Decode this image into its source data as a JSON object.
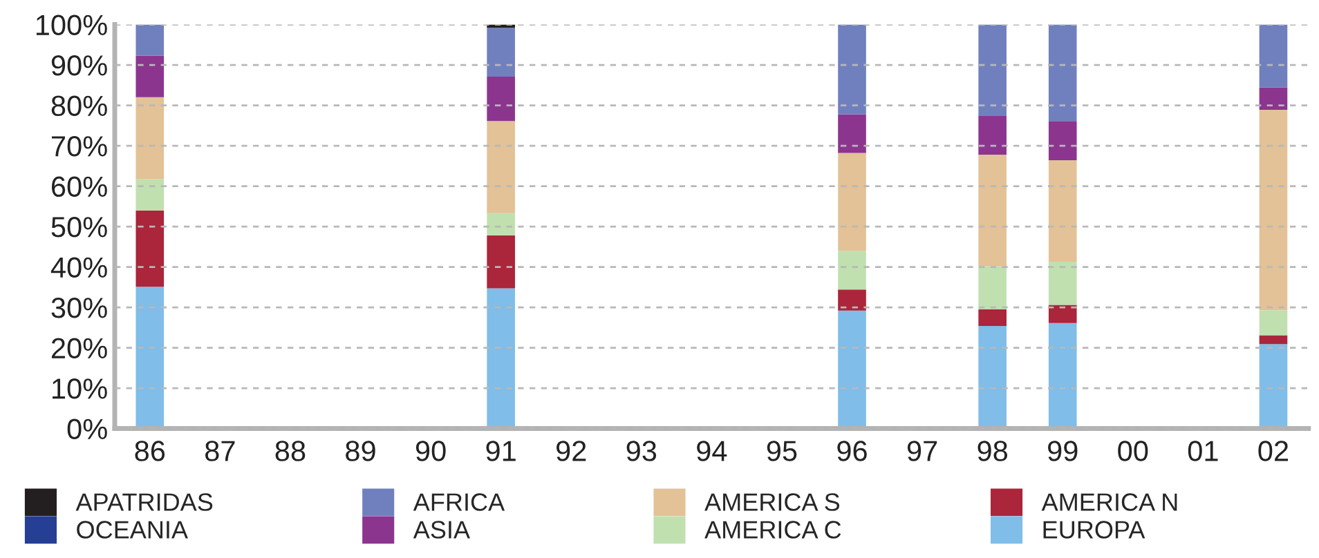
{
  "chart_data": {
    "type": "bar",
    "stacked": true,
    "categories": [
      "86",
      "87",
      "88",
      "89",
      "90",
      "91",
      "92",
      "93",
      "94",
      "95",
      "96",
      "97",
      "98",
      "99",
      "00",
      "01",
      "02"
    ],
    "series": [
      {
        "name": "EUROPA",
        "color": "#80bde8",
        "values": [
          35.1,
          null,
          null,
          null,
          null,
          34.7,
          null,
          null,
          null,
          null,
          29.2,
          null,
          25.4,
          26.1,
          null,
          null,
          20.9
        ]
      },
      {
        "name": "AMERICA N",
        "color": "#ab253b",
        "values": [
          18.9,
          null,
          null,
          null,
          null,
          13.1,
          null,
          null,
          null,
          null,
          5.2,
          null,
          4.1,
          4.5,
          null,
          null,
          2.2
        ]
      },
      {
        "name": "AMERICA C",
        "color": "#c0e0b0",
        "values": [
          7.7,
          null,
          null,
          null,
          null,
          5.5,
          null,
          null,
          null,
          null,
          9.6,
          null,
          10.7,
          10.7,
          null,
          null,
          6.2
        ]
      },
      {
        "name": "AMERICA S",
        "color": "#e2c296",
        "values": [
          20.3,
          null,
          null,
          null,
          null,
          22.8,
          null,
          null,
          null,
          null,
          24.2,
          null,
          27.6,
          25.1,
          null,
          null,
          49.6
        ]
      },
      {
        "name": "ASIA",
        "color": "#8c358f",
        "values": [
          10.3,
          null,
          null,
          null,
          null,
          11.0,
          null,
          null,
          null,
          null,
          9.6,
          null,
          9.7,
          9.7,
          null,
          null,
          5.5
        ]
      },
      {
        "name": "AFRICA",
        "color": "#7080bf",
        "values": [
          7.7,
          null,
          null,
          null,
          null,
          12.1,
          null,
          null,
          null,
          null,
          22.2,
          null,
          22.5,
          23.9,
          null,
          null,
          15.6
        ]
      },
      {
        "name": "OCEANIA",
        "color": "#243f94",
        "values": [
          0,
          null,
          null,
          null,
          null,
          0,
          null,
          null,
          null,
          null,
          0,
          null,
          0,
          0,
          null,
          null,
          0
        ]
      },
      {
        "name": "APATRIDAS",
        "color": "#231f20",
        "values": [
          0,
          null,
          null,
          null,
          null,
          0.8,
          null,
          null,
          null,
          null,
          0,
          null,
          0,
          0,
          null,
          null,
          0
        ]
      }
    ],
    "ylim": [
      0,
      100
    ],
    "yticks": [
      {
        "value": 0,
        "label": "0%"
      },
      {
        "value": 10,
        "label": "10%"
      },
      {
        "value": 20,
        "label": "20%"
      },
      {
        "value": 30,
        "label": "30%"
      },
      {
        "value": 40,
        "label": "40%"
      },
      {
        "value": 50,
        "label": "50%"
      },
      {
        "value": 60,
        "label": "60%"
      },
      {
        "value": 70,
        "label": "70%"
      },
      {
        "value": 80,
        "label": "80%"
      },
      {
        "value": 90,
        "label": "90%"
      },
      {
        "value": 100,
        "label": "100%"
      }
    ],
    "grid": "y",
    "legend": "bottom"
  }
}
